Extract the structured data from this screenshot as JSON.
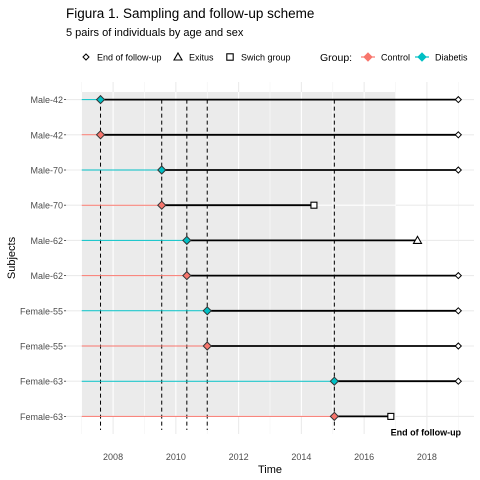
{
  "chart_data": {
    "type": "timeline",
    "title": "Figura 1. Sampling and follow-up scheme",
    "subtitle": "5 pairs of individuals by age and sex",
    "xlabel": "Time",
    "ylabel": "Subjects",
    "xlim": [
      2006.5,
      2019.5
    ],
    "xticks": [
      2008,
      2010,
      2012,
      2014,
      2016,
      2018
    ],
    "shaded_period": [
      2007,
      2017
    ],
    "legend_shapes": {
      "items": [
        {
          "shape": "diamond",
          "label": "End of follow-up"
        },
        {
          "shape": "triangle",
          "label": "Exitus"
        },
        {
          "shape": "square",
          "label": "Swich group"
        }
      ]
    },
    "legend_group": {
      "title": "Group:",
      "items": [
        {
          "name": "Control",
          "color": "#F8766D"
        },
        {
          "name": "Diabetis",
          "color": "#00BFC4"
        }
      ]
    },
    "annotation": "End of follow-up",
    "line_start": 2007,
    "subjects": [
      {
        "label": "Male-42",
        "group": "Diabetis",
        "entry": 2007.6,
        "end": 2019.0,
        "end_shape": "diamond"
      },
      {
        "label": "Male-42",
        "group": "Control",
        "entry": 2007.6,
        "end": 2019.0,
        "end_shape": "diamond"
      },
      {
        "label": "Male-70",
        "group": "Diabetis",
        "entry": 2009.55,
        "end": 2019.0,
        "end_shape": "diamond"
      },
      {
        "label": "Male-70",
        "group": "Control",
        "entry": 2009.55,
        "end": 2014.4,
        "end_shape": "square"
      },
      {
        "label": "Male-62",
        "group": "Diabetis",
        "entry": 2010.35,
        "end": 2017.7,
        "end_shape": "triangle"
      },
      {
        "label": "Male-62",
        "group": "Control",
        "entry": 2010.35,
        "end": 2019.0,
        "end_shape": "diamond"
      },
      {
        "label": "Female-55",
        "group": "Diabetis",
        "entry": 2011.0,
        "end": 2019.0,
        "end_shape": "diamond"
      },
      {
        "label": "Female-55",
        "group": "Control",
        "entry": 2011.0,
        "end": 2019.0,
        "end_shape": "diamond"
      },
      {
        "label": "Female-63",
        "group": "Diabetis",
        "entry": 2015.05,
        "end": 2019.0,
        "end_shape": "diamond"
      },
      {
        "label": "Female-63",
        "group": "Control",
        "entry": 2015.05,
        "end": 2016.85,
        "end_shape": "square"
      }
    ],
    "entry_dashed_lines": [
      2007.6,
      2009.55,
      2010.35,
      2011.0,
      2015.05
    ]
  }
}
